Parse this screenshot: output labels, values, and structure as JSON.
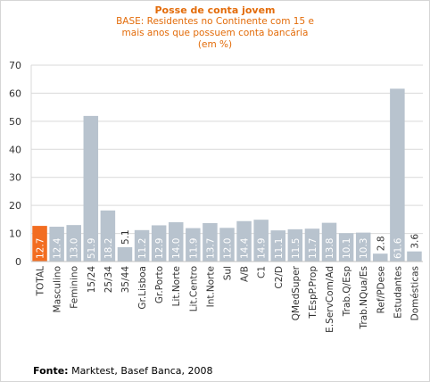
{
  "chart_data": {
    "type": "bar",
    "title": "Posse de conta jovem",
    "subtitle_lines": [
      "BASE: Residentes no Continente com 15 e",
      "mais anos que possuem conta bancária",
      "(em %)"
    ],
    "categories": [
      "TOTAL",
      "Masculino",
      "Feminino",
      "15/24",
      "25/34",
      "35/44",
      "Gr.Lisboa",
      "Gr.Porto",
      "Lit.Norte",
      "Lit.Centro",
      "Int.Norte",
      "Sul",
      "A/B",
      "C1",
      "C2/D",
      "QMedSuper",
      "T.EspP.Prop",
      "E.ServCom/Ad",
      "Trab.Q/Esp",
      "Trab.NQua/Es",
      "Ref/PDese",
      "Estudantes",
      "Domésticas"
    ],
    "values": [
      12.7,
      12.4,
      13.0,
      51.9,
      18.2,
      5.1,
      11.2,
      12.9,
      14.0,
      11.9,
      13.7,
      12.0,
      14.4,
      14.9,
      11.1,
      11.5,
      11.7,
      13.8,
      10.1,
      10.3,
      2.8,
      61.6,
      3.6
    ],
    "labels": [
      "12.7",
      "12.4",
      "13.0",
      "51.9",
      "18.2",
      "5.1",
      "11.2",
      "12.9",
      "14.0",
      "11.9",
      "13.7",
      "12.0",
      "14.4",
      "14.9",
      "11.1",
      "11.5",
      "11.7",
      "13.8",
      "10.1",
      "10.3",
      "2.8",
      "61.6",
      "3.6"
    ],
    "highlight_index": 0,
    "ylim": [
      0,
      70
    ],
    "yticks": [
      0,
      10,
      20,
      30,
      40,
      50,
      60,
      70
    ],
    "grid": true,
    "colors": {
      "bar": "#b8c3ce",
      "highlight": "#f26d21",
      "grid": "#d9d9d9",
      "title": "#e36c0a"
    }
  },
  "footer": {
    "source_label": "Fonte:",
    "source_text": " Marktest, Basef Banca, 2008"
  }
}
